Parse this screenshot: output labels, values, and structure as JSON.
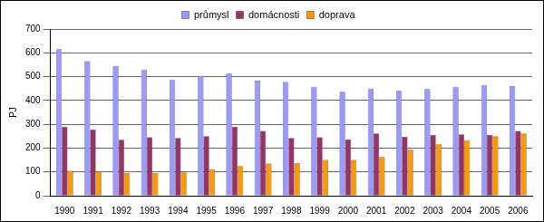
{
  "chart_data": {
    "type": "bar",
    "y_label": "PJ",
    "categories": [
      "1990",
      "1991",
      "1992",
      "1993",
      "1994",
      "1995",
      "1996",
      "1997",
      "1998",
      "1999",
      "2000",
      "2001",
      "2002",
      "2003",
      "2004",
      "2005",
      "2006"
    ],
    "series": [
      {
        "name": "průmysl",
        "color": "#9999ff",
        "values": [
          615,
          565,
          545,
          530,
          488,
          503,
          515,
          483,
          477,
          457,
          437,
          450,
          442,
          448,
          457,
          465,
          460
        ]
      },
      {
        "name": "domácnosti",
        "color": "#993366",
        "values": [
          290,
          278,
          235,
          245,
          243,
          250,
          290,
          272,
          243,
          245,
          237,
          262,
          247,
          255,
          258,
          255,
          272
        ]
      },
      {
        "name": "doprava",
        "color": "#ff9900",
        "values": [
          105,
          103,
          95,
          95,
          98,
          110,
          125,
          135,
          137,
          150,
          150,
          163,
          193,
          218,
          233,
          250,
          262
        ]
      }
    ],
    "ylim": [
      0,
      700
    ],
    "yticks": [
      0,
      100,
      200,
      300,
      400,
      500,
      600,
      700
    ],
    "grid": true,
    "legend": "top"
  }
}
